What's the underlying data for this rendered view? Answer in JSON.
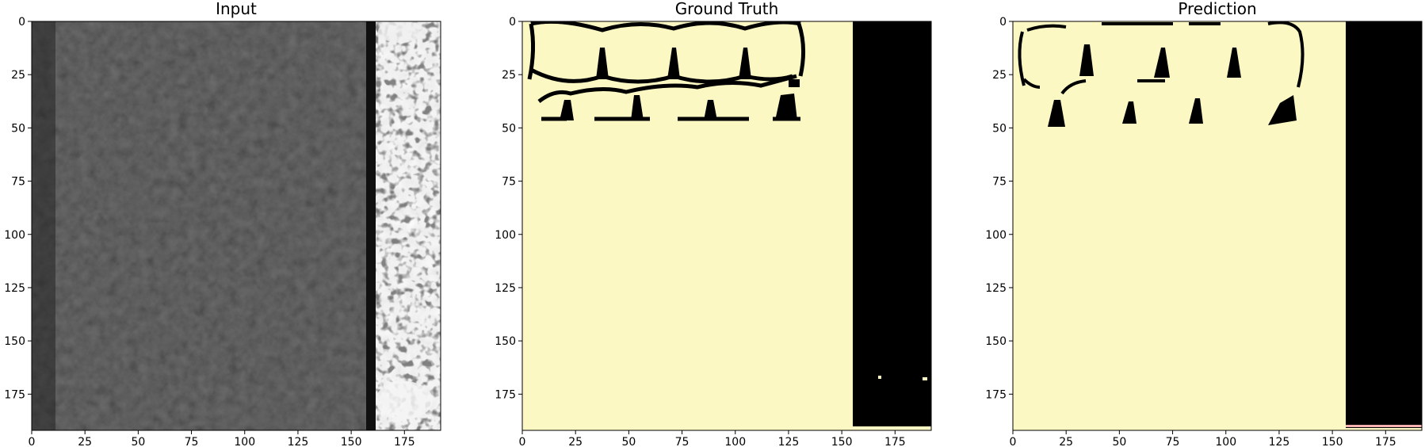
{
  "figure": {
    "panels": [
      {
        "id": "input",
        "title": "Input",
        "kind": "grayscale-image",
        "x_ticks": [
          "0",
          "25",
          "50",
          "75",
          "100",
          "125",
          "150",
          "175"
        ],
        "y_ticks": [
          "0",
          "25",
          "50",
          "75",
          "100",
          "125",
          "150",
          "175"
        ]
      },
      {
        "id": "ground-truth",
        "title": "Ground Truth",
        "kind": "binary-mask",
        "x_ticks": [
          "0",
          "25",
          "50",
          "75",
          "100",
          "125",
          "150",
          "175"
        ],
        "y_ticks": [
          "0",
          "25",
          "50",
          "75",
          "100",
          "125",
          "150",
          "175"
        ]
      },
      {
        "id": "prediction",
        "title": "Prediction",
        "kind": "binary-mask",
        "x_ticks": [
          "0",
          "25",
          "50",
          "75",
          "100",
          "125",
          "150",
          "175"
        ],
        "y_ticks": [
          "0",
          "25",
          "50",
          "75",
          "100",
          "125",
          "150",
          "175"
        ]
      }
    ],
    "axis_range": [
      0,
      192
    ],
    "colors": {
      "mask_light": "#fbf8c3",
      "mask_dark": "#000000",
      "input_background": "#2c2c2c",
      "input_bright": "#e8e8e8"
    }
  }
}
